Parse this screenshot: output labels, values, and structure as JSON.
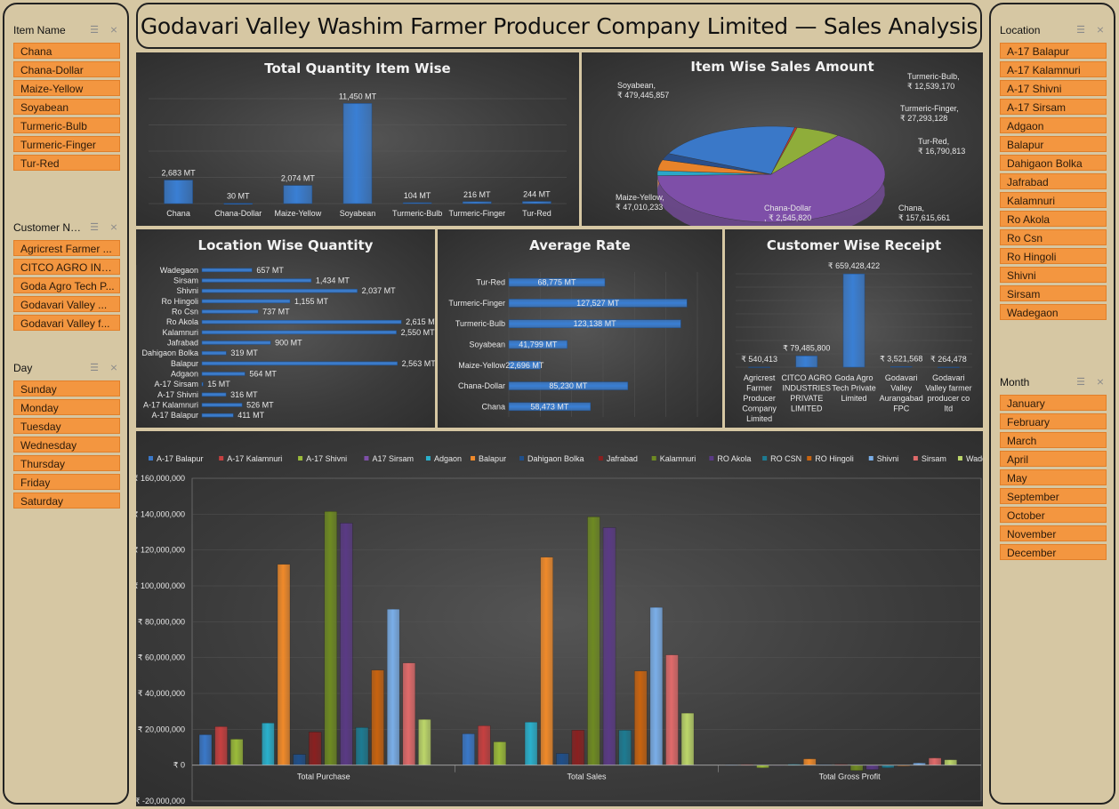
{
  "title": "Godavari Valley Washim Farmer Producer Company Limited — Sales Analysis",
  "slicers": {
    "item": {
      "header": "Item Name",
      "items": [
        "Chana",
        "Chana-Dollar",
        "Maize-Yellow",
        "Soyabean",
        "Turmeric-Bulb",
        "Turmeric-Finger",
        "Tur-Red"
      ]
    },
    "customer": {
      "header": "Customer Na...",
      "items": [
        "Agricrest Farmer ...",
        "CITCO AGRO INDU...",
        "Goda Agro Tech P...",
        "Godavari Valley ...",
        "Godavari Valley f..."
      ]
    },
    "day": {
      "header": "Day",
      "items": [
        "Sunday",
        "Monday",
        "Tuesday",
        "Wednesday",
        "Thursday",
        "Friday",
        "Saturday"
      ]
    },
    "location": {
      "header": "Location",
      "items": [
        "A-17 Balapur",
        "A-17 Kalamnuri",
        "A-17 Shivni",
        "A-17 Sirsam",
        "Adgaon",
        "Balapur",
        "Dahigaon Bolka",
        "Jafrabad",
        "Kalamnuri",
        "Ro Akola",
        "Ro Csn",
        "Ro Hingoli",
        "Shivni",
        "Sirsam",
        "Wadegaon"
      ]
    },
    "month": {
      "header": "Month",
      "items": [
        "January",
        "February",
        "March",
        "April",
        "May",
        "September",
        "October",
        "November",
        "December"
      ]
    }
  },
  "chart_data": [
    {
      "type": "bar",
      "title": "Total Quantity Item Wise",
      "categories": [
        "Chana",
        "Chana-Dollar",
        "Maize-Yellow",
        "Soyabean",
        "Turmeric-Bulb",
        "Turmeric-Finger",
        "Tur-Red"
      ],
      "values": [
        2683,
        30,
        2074,
        11450,
        104,
        216,
        244
      ],
      "labels": [
        "2,683 MT",
        "30 MT",
        "2,074 MT",
        "11,450 MT",
        "104 MT",
        "216 MT",
        "244 MT"
      ]
    },
    {
      "type": "pie",
      "title": "Item Wise Sales Amount",
      "categories": [
        "Soyabean",
        "Turmeric-Bulb",
        "Turmeric-Finger",
        "Tur-Red",
        "Chana",
        "Chana-Dollar",
        "Maize-Yellow"
      ],
      "values": [
        479445857,
        12539170,
        27293128,
        16790813,
        157615661,
        2545820,
        47010233
      ],
      "labels": [
        "Soyabean,\n₹ 479,445,857",
        "Turmeric-Bulb,\n₹ 12,539,170",
        "Turmeric-Finger,\n₹ 27,293,128",
        "Tur-Red,\n₹ 16,790,813",
        "Chana,\n₹ 157,615,661",
        "Chana-Dollar\n, ₹ 2,545,820",
        "Maize-Yellow,\n₹ 47,010,233"
      ],
      "colors": [
        "#7e4fa8",
        "#2aa7c8",
        "#e8832a",
        "#2a4f8a",
        "#3a78c8",
        "#c0392b",
        "#8fad3a"
      ]
    },
    {
      "type": "bar",
      "title": "Location Wise Quantity",
      "categories": [
        "Wadegaon",
        "Sirsam",
        "Shivni",
        "Ro Hingoli",
        "Ro Csn",
        "Ro Akola",
        "Kalamnuri",
        "Jafrabad",
        "Dahigaon Bolka",
        "Balapur",
        "Adgaon",
        "A-17 Sirsam",
        "A-17 Shivni",
        "A-17 Kalamnuri",
        "A-17 Balapur"
      ],
      "values": [
        657,
        1434,
        2037,
        1155,
        737,
        2615,
        2550,
        900,
        319,
        2563,
        564,
        15,
        316,
        526,
        411
      ],
      "labels": [
        "657 MT",
        "1,434 MT",
        "2,037 MT",
        "1,155 MT",
        "737 MT",
        "2,615 MT",
        "2,550 MT",
        "900 MT",
        "319 MT",
        "2,563 MT",
        "564 MT",
        "15 MT",
        "316 MT",
        "526 MT",
        "411 MT"
      ]
    },
    {
      "type": "bar",
      "title": "Average Rate",
      "categories": [
        "Tur-Red",
        "Turmeric-Finger",
        "Turmeric-Bulb",
        "Soyabean",
        "Maize-Yellow",
        "Chana-Dollar",
        "Chana"
      ],
      "values": [
        68775,
        127527,
        123138,
        41799,
        22696,
        85230,
        58473
      ],
      "labels": [
        "68,775 MT",
        "127,527 MT",
        "123,138 MT",
        "41,799 MT",
        "22,696 MT",
        "85,230 MT",
        "58,473 MT"
      ]
    },
    {
      "type": "bar",
      "title": "Customer Wise Receipt",
      "categories": [
        "Agricrest Farmer Producer Company Limited",
        "CITCO AGRO INDUSTRIES PRIVATE LIMITED",
        "Goda Agro Tech Private Limited",
        "Godavari Valley Aurangabad FPC",
        "Godavari Valley farmer producer co ltd"
      ],
      "category_lines": [
        [
          "Agricrest",
          "Farmer",
          "Producer",
          "Company",
          "Limited"
        ],
        [
          "CITCO AGRO",
          "INDUSTRIES",
          "PRIVATE",
          "LIMITED"
        ],
        [
          "Goda Agro",
          "Tech Private",
          "Limited"
        ],
        [
          "Godavari",
          "Valley",
          "Aurangabad",
          "FPC"
        ],
        [
          "Godavari",
          "Valley farmer",
          "producer co",
          "ltd"
        ]
      ],
      "values": [
        540413,
        79485800,
        659428422,
        3521568,
        264478
      ],
      "labels": [
        "₹ 540,413",
        "₹ 79,485,800",
        "₹ 659,428,422",
        "₹ 3,521,568",
        "₹ 264,478"
      ]
    },
    {
      "type": "bar",
      "categories": [
        "Total Purchase",
        "Total Sales",
        "Total Gross Profit"
      ],
      "ylim": [
        -20000000,
        160000000
      ],
      "yticks": [
        "₹ -20,000,000",
        "₹ 0",
        "₹ 20,000,000",
        "₹ 40,000,000",
        "₹ 60,000,000",
        "₹ 80,000,000",
        "₹ 100,000,000",
        "₹ 120,000,000",
        "₹ 140,000,000",
        "₹ 160,000,000"
      ],
      "legend_position": "top",
      "series": [
        {
          "name": "A-17 Balapur",
          "color": "#3a78c8",
          "values": [
            17000000,
            17500000,
            300000
          ]
        },
        {
          "name": "A-17 Kalamnuri",
          "color": "#c64040",
          "values": [
            21500000,
            22000000,
            400000
          ]
        },
        {
          "name": "A-17 Shivni",
          "color": "#9bbb3a",
          "values": [
            14500000,
            13000000,
            -1500000
          ]
        },
        {
          "name": "A17 Sirsam",
          "color": "#7e4fa8",
          "values": [
            300000,
            200000,
            -100000
          ]
        },
        {
          "name": "Adgaon",
          "color": "#2ab0cc",
          "values": [
            23500000,
            24000000,
            500000
          ]
        },
        {
          "name": "Balapur",
          "color": "#f08a2a",
          "values": [
            112000000,
            116000000,
            3500000
          ]
        },
        {
          "name": "Dahigaon Bolka",
          "color": "#1f4f8a",
          "values": [
            6000000,
            6500000,
            400000
          ]
        },
        {
          "name": "Jafrabad",
          "color": "#8a2020",
          "values": [
            18500000,
            19500000,
            500000
          ]
        },
        {
          "name": "Kalamnuri",
          "color": "#6e8a22",
          "values": [
            141500000,
            138500000,
            -3000000
          ]
        },
        {
          "name": "RO Akola",
          "color": "#5a3a85",
          "values": [
            135000000,
            132500000,
            -2500000
          ]
        },
        {
          "name": "RO CSN",
          "color": "#1d7b92",
          "values": [
            21000000,
            19500000,
            -1500000
          ]
        },
        {
          "name": "RO Hingoli",
          "color": "#c8630f",
          "values": [
            53000000,
            52500000,
            -500000
          ]
        },
        {
          "name": "Shivni",
          "color": "#7aaee8",
          "values": [
            87000000,
            88000000,
            1200000
          ]
        },
        {
          "name": "Sirsam",
          "color": "#e06a6a",
          "values": [
            57000000,
            61500000,
            4000000
          ]
        },
        {
          "name": "Wadegaon",
          "color": "#bcd66a",
          "values": [
            25500000,
            29000000,
            3000000
          ]
        }
      ]
    }
  ]
}
